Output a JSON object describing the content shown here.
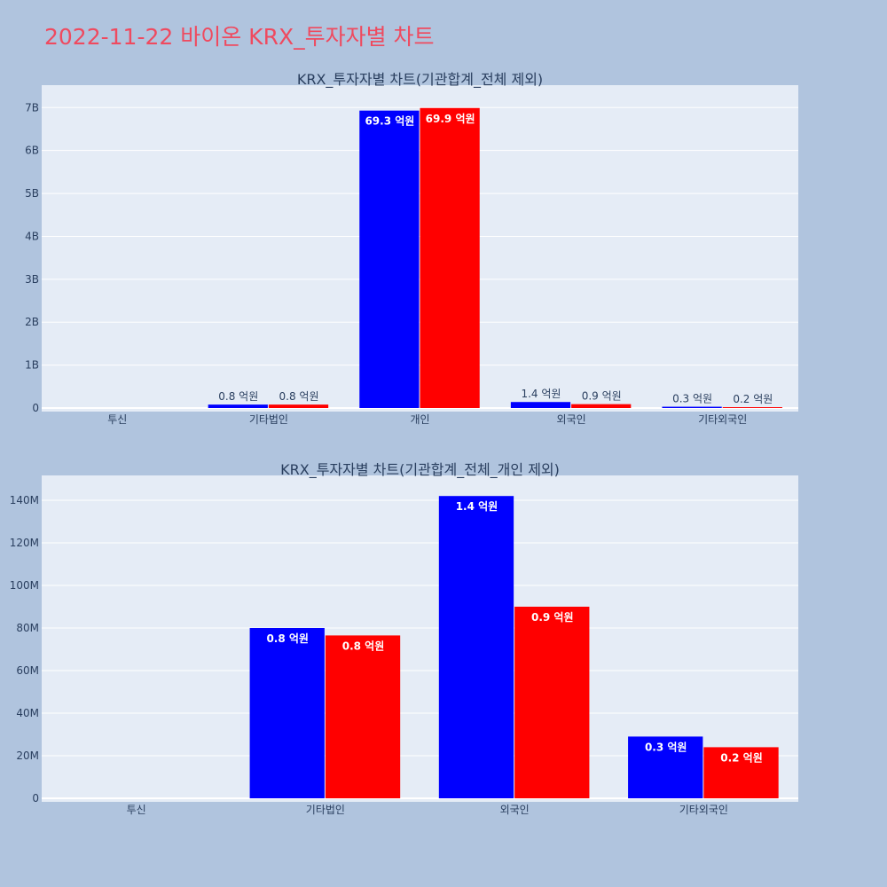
{
  "title": "2022-11-22 바이온 KRX_투자자별 차트",
  "colors": {
    "buy": "#0000ff",
    "sell": "#ff0000",
    "plot_bg": "#e5ecf6",
    "page_bg": "#b0c4de",
    "title": "#ef4a5f"
  },
  "chart_data": [
    {
      "type": "bar",
      "title": "KRX_투자자별 차트(기관합계_전체 제외)",
      "categories": [
        "투신",
        "기타법인",
        "개인",
        "외국인",
        "기타외국인"
      ],
      "series": [
        {
          "values": [
            0,
            80000000,
            6930000000,
            140000000,
            30000000
          ],
          "labels": [
            "",
            "0.8 억원",
            "69.3 억원",
            "1.4 억원",
            "0.3 억원"
          ]
        },
        {
          "values": [
            0,
            80000000,
            6990000000,
            90000000,
            20000000
          ],
          "labels": [
            "",
            "0.8 억원",
            "69.9 억원",
            "0.9 억원",
            "0.2 억원"
          ]
        }
      ],
      "ylim": [
        0,
        7440000000
      ],
      "yticks": [
        0,
        1000000000,
        2000000000,
        3000000000,
        4000000000,
        5000000000,
        6000000000,
        7000000000
      ],
      "ytick_labels": [
        "0",
        "1B",
        "2B",
        "3B",
        "4B",
        "5B",
        "6B",
        "7B"
      ],
      "grid": true
    },
    {
      "type": "bar",
      "title": "KRX_투자자별 차트(기관합계_전체_개인 제외)",
      "categories": [
        "투신",
        "기타법인",
        "외국인",
        "기타외국인"
      ],
      "series": [
        {
          "values": [
            0,
            80000000,
            142000000,
            29000000
          ],
          "labels": [
            "",
            "0.8 억원",
            "1.4 억원",
            "0.3 억원"
          ]
        },
        {
          "values": [
            0,
            76500000,
            90000000,
            24000000
          ],
          "labels": [
            "",
            "0.8 억원",
            "0.9 억원",
            "0.2 억원"
          ]
        }
      ],
      "ylim": [
        0,
        150000000
      ],
      "yticks": [
        0,
        20000000,
        40000000,
        60000000,
        80000000,
        100000000,
        120000000,
        140000000
      ],
      "ytick_labels": [
        "0",
        "20M",
        "40M",
        "60M",
        "80M",
        "100M",
        "120M",
        "140M"
      ],
      "grid": true
    }
  ]
}
